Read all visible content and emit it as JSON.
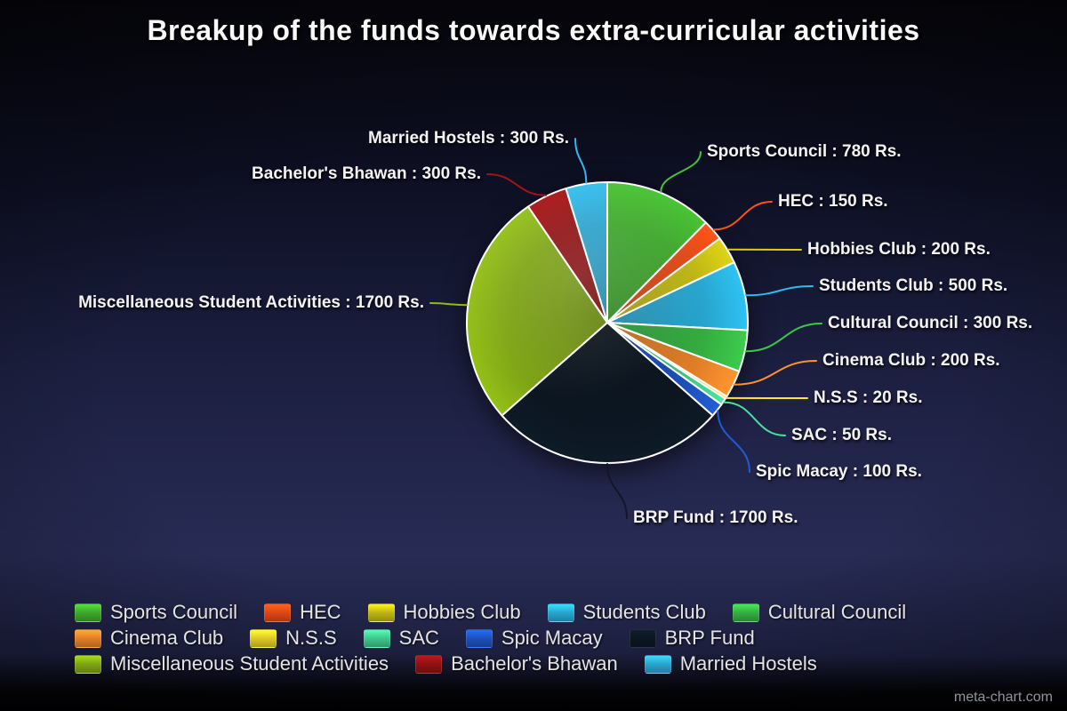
{
  "page": {
    "watermark": "meta-chart.com"
  },
  "chart_data": {
    "type": "pie",
    "title": "Breakup of the funds towards extra-curricular activities",
    "unit": "Rs.",
    "total": 6300,
    "legend_position": "bottom",
    "background": "dark-navy-gradient",
    "slices": [
      {
        "name": "Sports Council",
        "value": 780,
        "color": "#3ea62c",
        "label": "Sports Council : 780 Rs."
      },
      {
        "name": "HEC",
        "value": 150,
        "color": "#dd4716",
        "label": "HEC : 150 Rs."
      },
      {
        "name": "Hobbies Club",
        "value": 200,
        "color": "#bdb414",
        "label": "Hobbies Club : 200 Rs."
      },
      {
        "name": "Students Club",
        "value": 500,
        "color": "#27a5ce",
        "label": "Students Club : 500 Rs."
      },
      {
        "name": "Cultural Council",
        "value": 300,
        "color": "#34ad41",
        "label": "Cultural Council : 300 Rs."
      },
      {
        "name": "Cinema Club",
        "value": 200,
        "color": "#e07e28",
        "label": "Cinema Club : 200 Rs."
      },
      {
        "name": "N.S.S",
        "value": 20,
        "color": "#ddc728",
        "label": "N.S.S : 20 Rs."
      },
      {
        "name": "SAC",
        "value": 50,
        "color": "#3fc48b",
        "label": "SAC : 50 Rs."
      },
      {
        "name": "Spic Macay",
        "value": 100,
        "color": "#1d4fb8",
        "label": "Spic Macay : 100 Rs."
      },
      {
        "name": "BRP Fund",
        "value": 1700,
        "color": "#0c1621",
        "label": "BRP Fund : 1700 Rs."
      },
      {
        "name": "Miscellaneous Student Activities",
        "value": 1700,
        "color": "#7da314",
        "label": "Miscellaneous Student Activities : 1700 Rs."
      },
      {
        "name": "Bachelor's Bhawan",
        "value": 300,
        "color": "#8e1113",
        "label": "Bachelor's Bhawan : 300 Rs."
      },
      {
        "name": "Married Hostels",
        "value": 300,
        "color": "#2ba2cb",
        "label": "Married Hostels : 300 Rs."
      }
    ]
  }
}
